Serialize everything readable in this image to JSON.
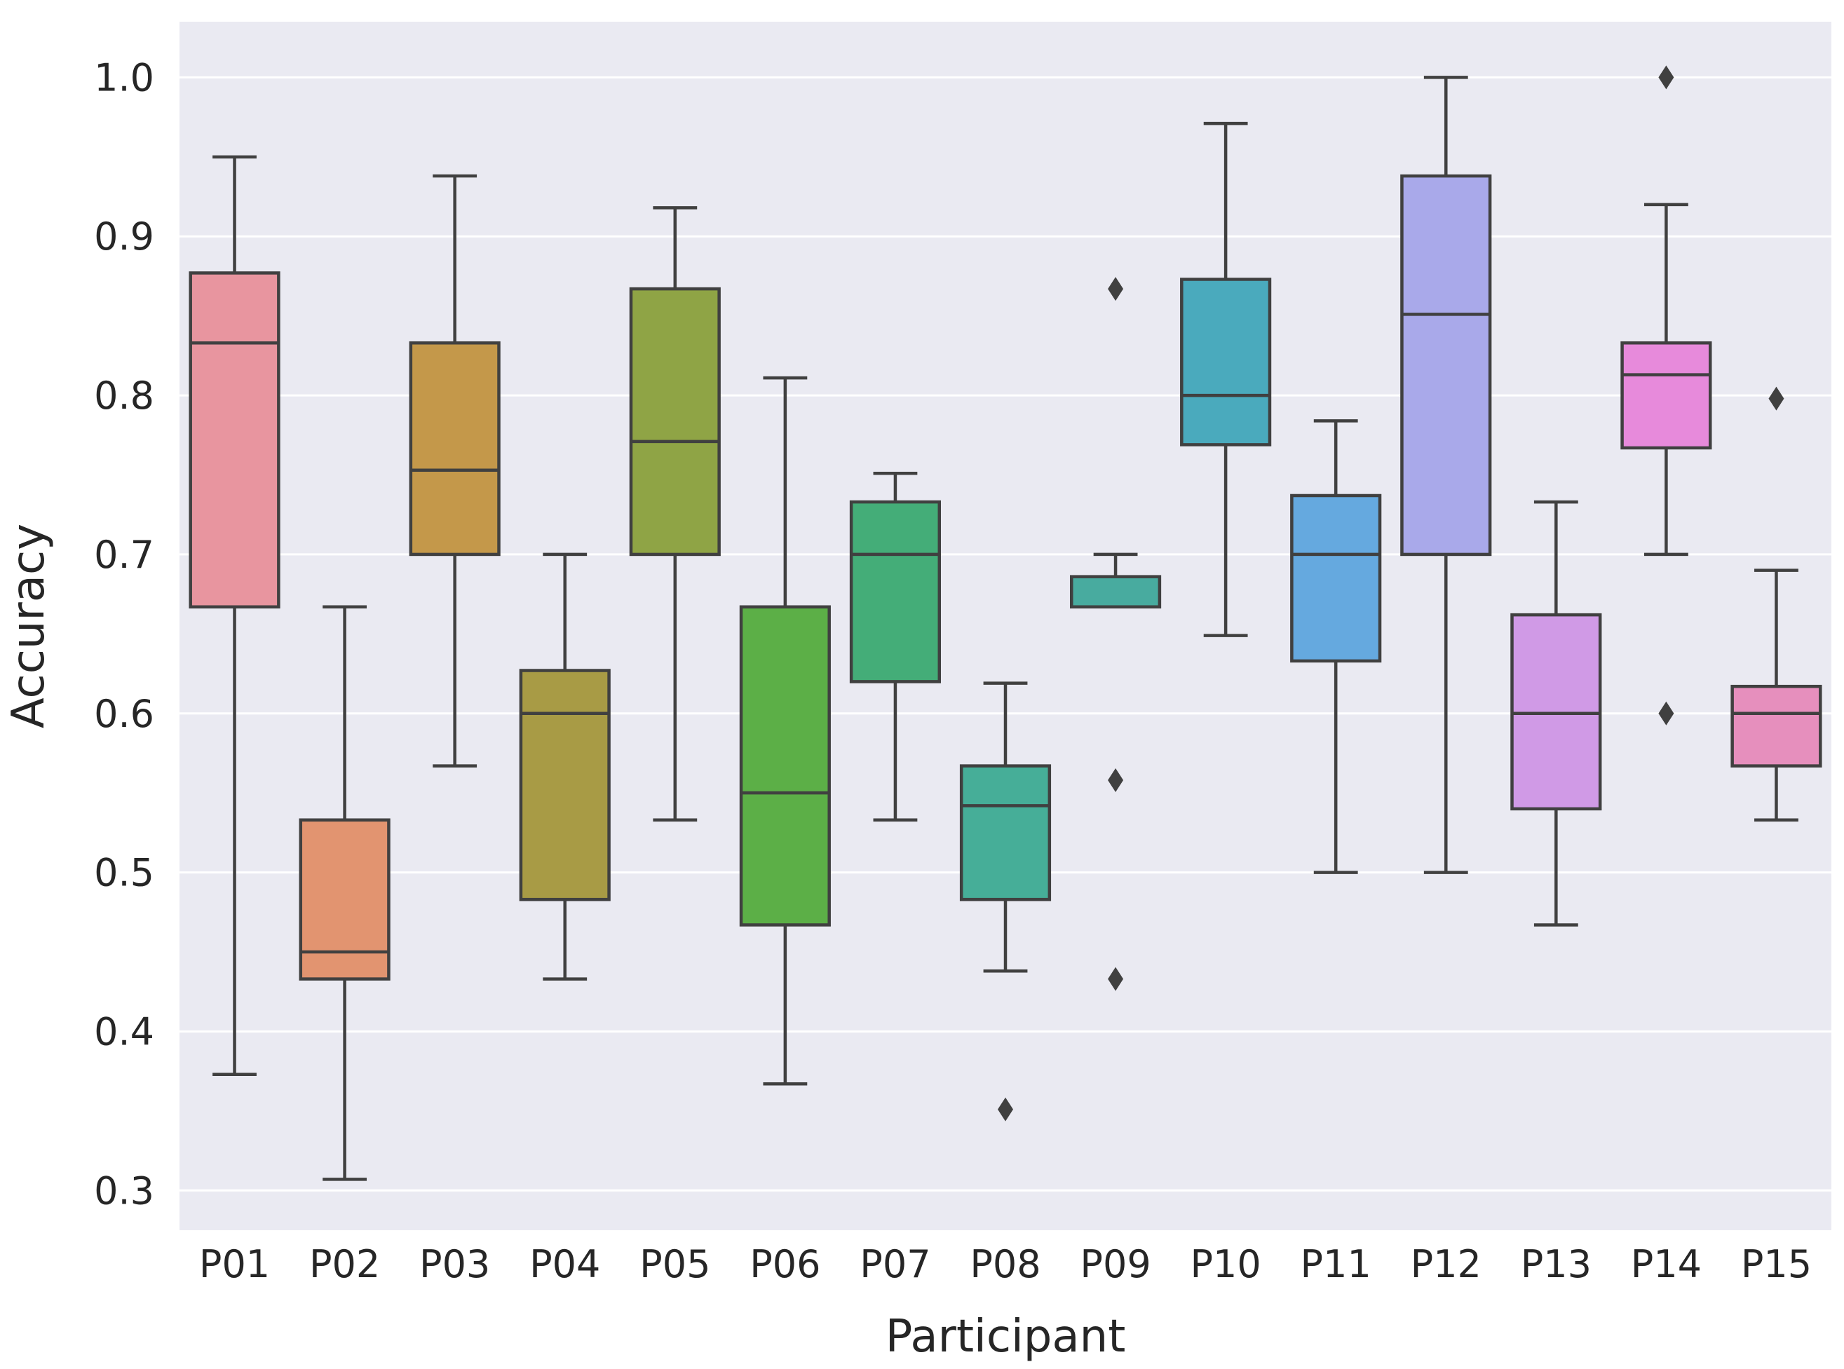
{
  "chart_data": {
    "type": "box",
    "title": "",
    "xlabel": "Participant",
    "ylabel": "Accuracy",
    "ylim": [
      0.275,
      1.035
    ],
    "yticks": [
      "0.3",
      "0.4",
      "0.5",
      "0.6",
      "0.7",
      "0.8",
      "0.9",
      "1.0"
    ],
    "grid": true,
    "background_color": "#eaeaf2",
    "line_color": "#404040",
    "categories": [
      "P01",
      "P02",
      "P03",
      "P04",
      "P05",
      "P06",
      "P07",
      "P08",
      "P09",
      "P10",
      "P11",
      "P12",
      "P13",
      "P14",
      "P15"
    ],
    "boxes": [
      {
        "name": "P01",
        "color": "#e8959f",
        "whisker_low": 0.373,
        "q1": 0.667,
        "median": 0.833,
        "q3": 0.877,
        "whisker_high": 0.95,
        "outliers": []
      },
      {
        "name": "P02",
        "color": "#e29470",
        "whisker_low": 0.307,
        "q1": 0.433,
        "median": 0.45,
        "q3": 0.533,
        "whisker_high": 0.667,
        "outliers": []
      },
      {
        "name": "P03",
        "color": "#c4984a",
        "whisker_low": 0.567,
        "q1": 0.7,
        "median": 0.753,
        "q3": 0.833,
        "whisker_high": 0.938,
        "outliers": []
      },
      {
        "name": "P04",
        "color": "#a89b45",
        "whisker_low": 0.433,
        "q1": 0.483,
        "median": 0.6,
        "q3": 0.627,
        "whisker_high": 0.7,
        "outliers": []
      },
      {
        "name": "P05",
        "color": "#8fa445",
        "whisker_low": 0.533,
        "q1": 0.7,
        "median": 0.771,
        "q3": 0.867,
        "whisker_high": 0.918,
        "outliers": []
      },
      {
        "name": "P06",
        "color": "#5caf47",
        "whisker_low": 0.367,
        "q1": 0.467,
        "median": 0.55,
        "q3": 0.667,
        "whisker_high": 0.811,
        "outliers": []
      },
      {
        "name": "P07",
        "color": "#44ad78",
        "whisker_low": 0.533,
        "q1": 0.62,
        "median": 0.7,
        "q3": 0.733,
        "whisker_high": 0.751,
        "outliers": []
      },
      {
        "name": "P08",
        "color": "#46ae98",
        "whisker_low": 0.438,
        "q1": 0.483,
        "median": 0.542,
        "q3": 0.567,
        "whisker_high": 0.619,
        "outliers": [
          0.351
        ]
      },
      {
        "name": "P09",
        "color": "#48ab9f",
        "whisker_low": 0.667,
        "q1": 0.667,
        "median": 0.667,
        "q3": 0.686,
        "whisker_high": 0.7,
        "outliers": [
          0.867,
          0.558,
          0.433
        ]
      },
      {
        "name": "P10",
        "color": "#4aaabd",
        "whisker_low": 0.649,
        "q1": 0.769,
        "median": 0.8,
        "q3": 0.873,
        "whisker_high": 0.971,
        "outliers": []
      },
      {
        "name": "P11",
        "color": "#65a9df",
        "whisker_low": 0.5,
        "q1": 0.633,
        "median": 0.7,
        "q3": 0.737,
        "whisker_high": 0.784,
        "outliers": []
      },
      {
        "name": "P12",
        "color": "#a9a9ea",
        "whisker_low": 0.5,
        "q1": 0.7,
        "median": 0.851,
        "q3": 0.938,
        "whisker_high": 1.0,
        "outliers": []
      },
      {
        "name": "P13",
        "color": "#d09ae6",
        "whisker_low": 0.467,
        "q1": 0.54,
        "median": 0.6,
        "q3": 0.662,
        "whisker_high": 0.733,
        "outliers": []
      },
      {
        "name": "P14",
        "color": "#e78adb",
        "whisker_low": 0.7,
        "q1": 0.767,
        "median": 0.813,
        "q3": 0.833,
        "whisker_high": 0.92,
        "outliers": [
          1.0,
          0.6
        ]
      },
      {
        "name": "P15",
        "color": "#e68fbd",
        "whisker_low": 0.533,
        "q1": 0.567,
        "median": 0.6,
        "q3": 0.617,
        "whisker_high": 0.69,
        "outliers": [
          0.798
        ]
      }
    ]
  }
}
